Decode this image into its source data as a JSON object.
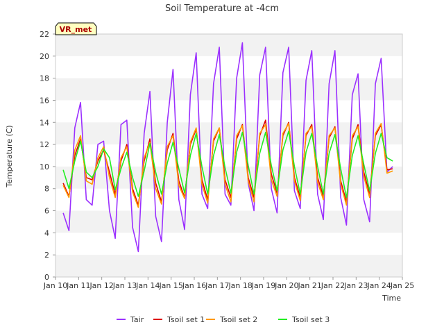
{
  "chart_data": {
    "type": "line",
    "title": "Soil Temperature at -4cm",
    "xlabel": "Time",
    "ylabel": "Temperature (C)",
    "annotation": "VR_met",
    "xlim": [
      "2025-01-10",
      "2025-01-25"
    ],
    "ylim": [
      0,
      22
    ],
    "x_ticks": [
      "Jan 10",
      "Jan 11",
      "Jan 12",
      "Jan 13",
      "Jan 14",
      "Jan 15",
      "Jan 16",
      "Jan 17",
      "Jan 18",
      "Jan 19",
      "Jan 20",
      "Jan 21",
      "Jan 22",
      "Jan 23",
      "Jan 24",
      "Jan 25"
    ],
    "y_ticks": [
      "0",
      "2",
      "4",
      "6",
      "8",
      "10",
      "12",
      "14",
      "16",
      "18",
      "20",
      "22"
    ],
    "grid": "horizontal bands",
    "legend_position": "bottom",
    "x": [
      "2025-01-10 08:00",
      "2025-01-10 14:00",
      "2025-01-10 20:00",
      "2025-01-11 02:00",
      "2025-01-11 08:00",
      "2025-01-11 14:00",
      "2025-01-11 20:00",
      "2025-01-12 02:00",
      "2025-01-12 08:00",
      "2025-01-12 14:00",
      "2025-01-12 20:00",
      "2025-01-13 02:00",
      "2025-01-13 08:00",
      "2025-01-13 14:00",
      "2025-01-13 20:00",
      "2025-01-14 02:00",
      "2025-01-14 08:00",
      "2025-01-14 14:00",
      "2025-01-14 20:00",
      "2025-01-15 02:00",
      "2025-01-15 08:00",
      "2025-01-15 14:00",
      "2025-01-15 20:00",
      "2025-01-16 02:00",
      "2025-01-16 08:00",
      "2025-01-16 14:00",
      "2025-01-16 20:00",
      "2025-01-17 02:00",
      "2025-01-17 08:00",
      "2025-01-17 14:00",
      "2025-01-17 20:00",
      "2025-01-18 02:00",
      "2025-01-18 08:00",
      "2025-01-18 14:00",
      "2025-01-18 20:00",
      "2025-01-19 02:00",
      "2025-01-19 08:00",
      "2025-01-19 14:00",
      "2025-01-19 20:00",
      "2025-01-20 02:00",
      "2025-01-20 08:00",
      "2025-01-20 14:00",
      "2025-01-20 20:00",
      "2025-01-21 02:00",
      "2025-01-21 08:00",
      "2025-01-21 14:00",
      "2025-01-21 20:00",
      "2025-01-22 02:00",
      "2025-01-22 08:00",
      "2025-01-22 14:00",
      "2025-01-22 20:00",
      "2025-01-23 02:00",
      "2025-01-23 08:00",
      "2025-01-23 14:00",
      "2025-01-23 20:00",
      "2025-01-24 02:00",
      "2025-01-24 08:00",
      "2025-01-24 14:00"
    ],
    "series": [
      {
        "name": "Tair",
        "color": "#9b30ff",
        "values": [
          5.8,
          4.2,
          13.5,
          15.8,
          7.0,
          6.5,
          12.0,
          12.3,
          6.0,
          3.5,
          13.8,
          14.2,
          4.5,
          2.3,
          13.0,
          16.8,
          5.5,
          3.2,
          14.0,
          18.8,
          7.0,
          4.3,
          16.5,
          20.3,
          7.5,
          6.2,
          17.5,
          20.8,
          7.5,
          6.5,
          18.0,
          21.2,
          8.5,
          6.0,
          18.3,
          20.8,
          8.0,
          5.8,
          18.5,
          20.8,
          7.8,
          6.2,
          17.8,
          20.5,
          7.5,
          5.2,
          17.5,
          20.5,
          7.2,
          4.7,
          16.5,
          18.4,
          7.0,
          5.0,
          17.5,
          19.8,
          9.5,
          10.0
        ]
      },
      {
        "name": "Tsoil set 1",
        "color": "#dd0000",
        "values": [
          8.5,
          7.3,
          11.0,
          12.5,
          9.0,
          8.8,
          10.5,
          11.5,
          9.5,
          7.5,
          10.5,
          12.0,
          8.0,
          6.5,
          10.5,
          12.5,
          8.5,
          6.8,
          11.5,
          13.0,
          8.7,
          7.2,
          12.0,
          13.4,
          8.8,
          7.0,
          12.3,
          13.5,
          8.8,
          7.2,
          12.5,
          13.8,
          9.0,
          7.2,
          12.8,
          14.2,
          9.3,
          7.6,
          12.8,
          14.0,
          9.0,
          7.2,
          12.8,
          13.8,
          9.0,
          7.3,
          12.6,
          13.6,
          8.7,
          6.8,
          12.5,
          13.8,
          9.5,
          7.5,
          12.8,
          13.8,
          9.7,
          9.8
        ]
      },
      {
        "name": "Tsoil set 2",
        "color": "#ff9900",
        "values": [
          8.3,
          7.2,
          11.5,
          12.8,
          8.7,
          8.4,
          10.8,
          11.8,
          9.0,
          7.2,
          10.8,
          11.8,
          7.7,
          6.3,
          10.8,
          12.2,
          8.0,
          6.6,
          11.8,
          12.8,
          8.3,
          7.1,
          12.2,
          13.5,
          8.4,
          6.7,
          12.5,
          13.5,
          8.4,
          6.8,
          12.8,
          13.7,
          8.7,
          6.8,
          13.0,
          13.8,
          8.8,
          7.3,
          13.0,
          13.9,
          8.7,
          6.9,
          13.0,
          13.6,
          8.6,
          7.0,
          12.8,
          13.5,
          8.4,
          6.5,
          12.8,
          13.6,
          9.1,
          7.2,
          13.0,
          13.9,
          9.4,
          9.6
        ]
      },
      {
        "name": "Tsoil set 3",
        "color": "#22ee22",
        "values": [
          9.7,
          8.0,
          10.5,
          12.3,
          9.5,
          9.0,
          10.0,
          11.6,
          10.8,
          7.9,
          9.8,
          11.3,
          9.0,
          7.3,
          9.6,
          12.1,
          9.5,
          7.5,
          10.3,
          12.2,
          9.8,
          7.6,
          11.0,
          13.0,
          10.0,
          7.5,
          11.0,
          12.9,
          9.9,
          7.6,
          11.3,
          13.1,
          10.1,
          7.5,
          11.2,
          13.1,
          10.1,
          7.8,
          11.5,
          13.2,
          10.0,
          7.5,
          11.3,
          13.0,
          10.0,
          7.5,
          11.2,
          12.9,
          9.8,
          7.2,
          11.0,
          12.8,
          10.2,
          7.8,
          11.2,
          13.0,
          10.8,
          10.5
        ]
      }
    ]
  }
}
